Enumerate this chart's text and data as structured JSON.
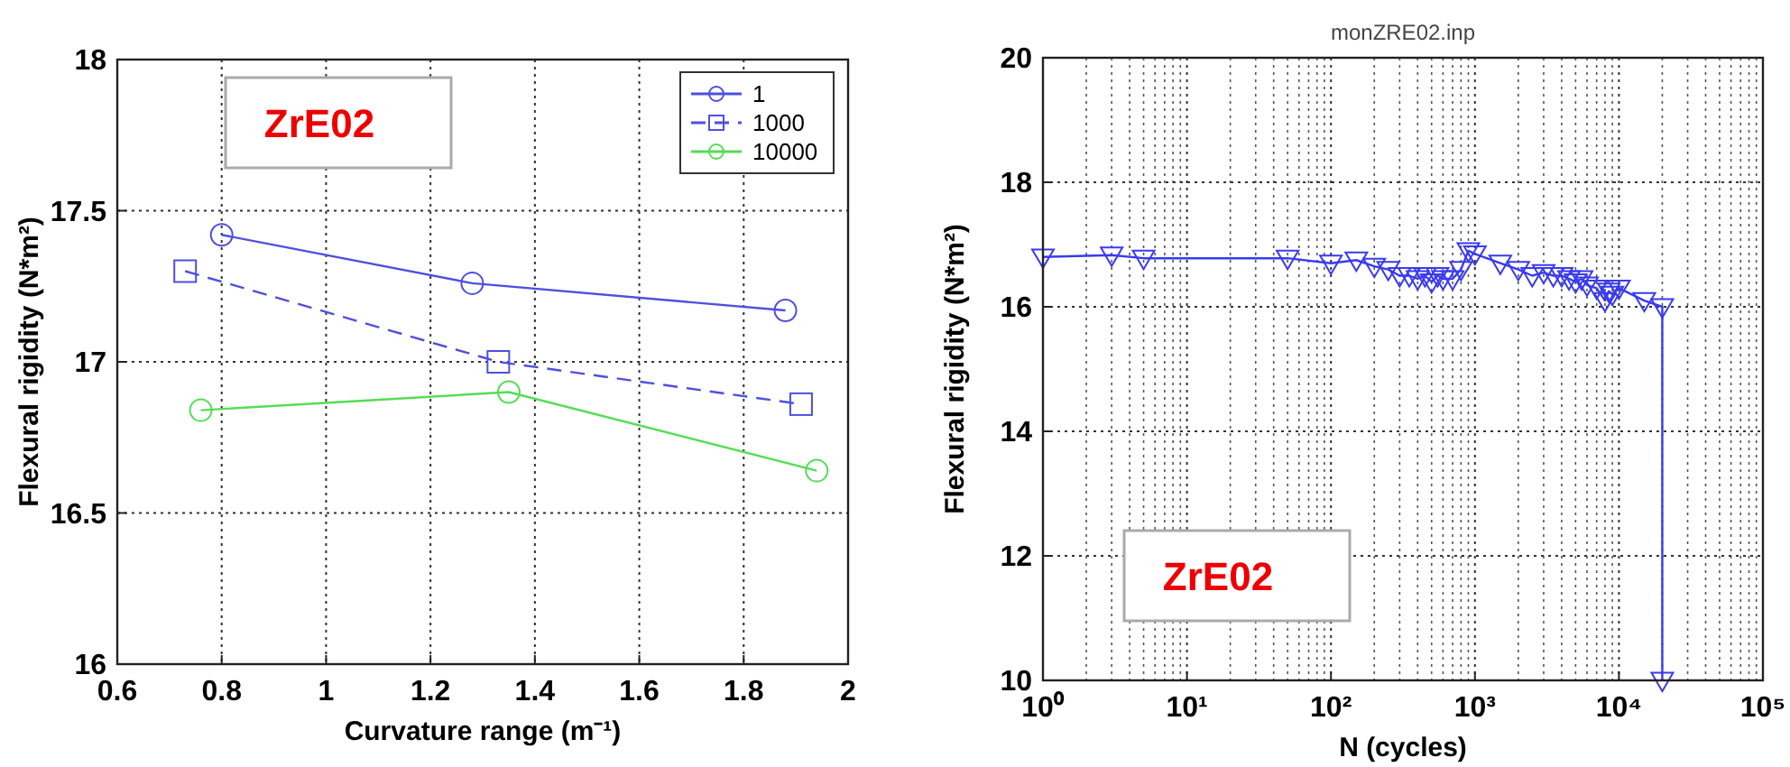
{
  "chart_data": [
    {
      "type": "line",
      "xlabel": "Curvature range (m⁻¹)",
      "ylabel": "Flexural rigidity (N*m²)",
      "xlim": [
        0.6,
        2
      ],
      "ylim": [
        16,
        18
      ],
      "xticks": [
        0.6,
        0.8,
        1,
        1.2,
        1.4,
        1.6,
        1.8,
        2
      ],
      "yticks": [
        16,
        16.5,
        17,
        17.5,
        18
      ],
      "grid": true,
      "legend": "top right",
      "annotations": [
        "ZrE02"
      ],
      "series": [
        {
          "name": "1",
          "color": "#4f4fe0",
          "marker": "circle",
          "line_style": "solid",
          "x": [
            0.8,
            1.28,
            1.88
          ],
          "values": [
            17.42,
            17.26,
            17.17
          ]
        },
        {
          "name": "1000",
          "color": "#4f4fe0",
          "marker": "square",
          "line_style": "dashed",
          "x": [
            0.73,
            1.33,
            1.91
          ],
          "values": [
            17.3,
            17.0,
            16.86
          ]
        },
        {
          "name": "10000",
          "color": "#55dd55",
          "marker": "circle",
          "line_style": "solid",
          "x": [
            0.76,
            1.35,
            1.94
          ],
          "values": [
            16.84,
            16.9,
            16.64
          ]
        }
      ]
    },
    {
      "type": "line",
      "title": "monZRE02.inp",
      "xlabel": "N (cycles)",
      "ylabel": "Flexural rigidity (N*m²)",
      "log": "x",
      "xlim": [
        1,
        100000
      ],
      "ylim": [
        10,
        20
      ],
      "xticks": [
        {
          "value": 1,
          "label": "10⁰"
        },
        {
          "value": 10,
          "label": "10¹"
        },
        {
          "value": 100,
          "label": "10²"
        },
        {
          "value": 1000,
          "label": "10³"
        },
        {
          "value": 10000,
          "label": "10⁴"
        },
        {
          "value": 100000,
          "label": "10⁵"
        }
      ],
      "yticks": [
        10,
        12,
        14,
        16,
        18,
        20
      ],
      "grid": true,
      "annotations": [
        "ZrE02"
      ],
      "series": [
        {
          "color": "#3a3af0",
          "marker": "triangle",
          "line_style": "solid",
          "x": [
            1,
            3,
            5,
            50,
            100,
            150,
            200,
            250,
            300,
            350,
            400,
            450,
            500,
            550,
            600,
            700,
            800,
            900,
            1000,
            1500,
            2000,
            2500,
            3000,
            3500,
            4000,
            4500,
            5000,
            5500,
            6000,
            7000,
            8000,
            8500,
            9000,
            10000,
            15000,
            20000,
            20000
          ],
          "values": [
            16.8,
            16.83,
            16.78,
            16.78,
            16.7,
            16.75,
            16.65,
            16.6,
            16.5,
            16.5,
            16.45,
            16.5,
            16.4,
            16.5,
            16.45,
            16.45,
            16.6,
            16.9,
            16.85,
            16.7,
            16.6,
            16.5,
            16.55,
            16.5,
            16.5,
            16.45,
            16.4,
            16.45,
            16.35,
            16.3,
            16.1,
            16.25,
            16.2,
            16.3,
            16.1,
            16.0,
            10
          ]
        }
      ]
    }
  ]
}
